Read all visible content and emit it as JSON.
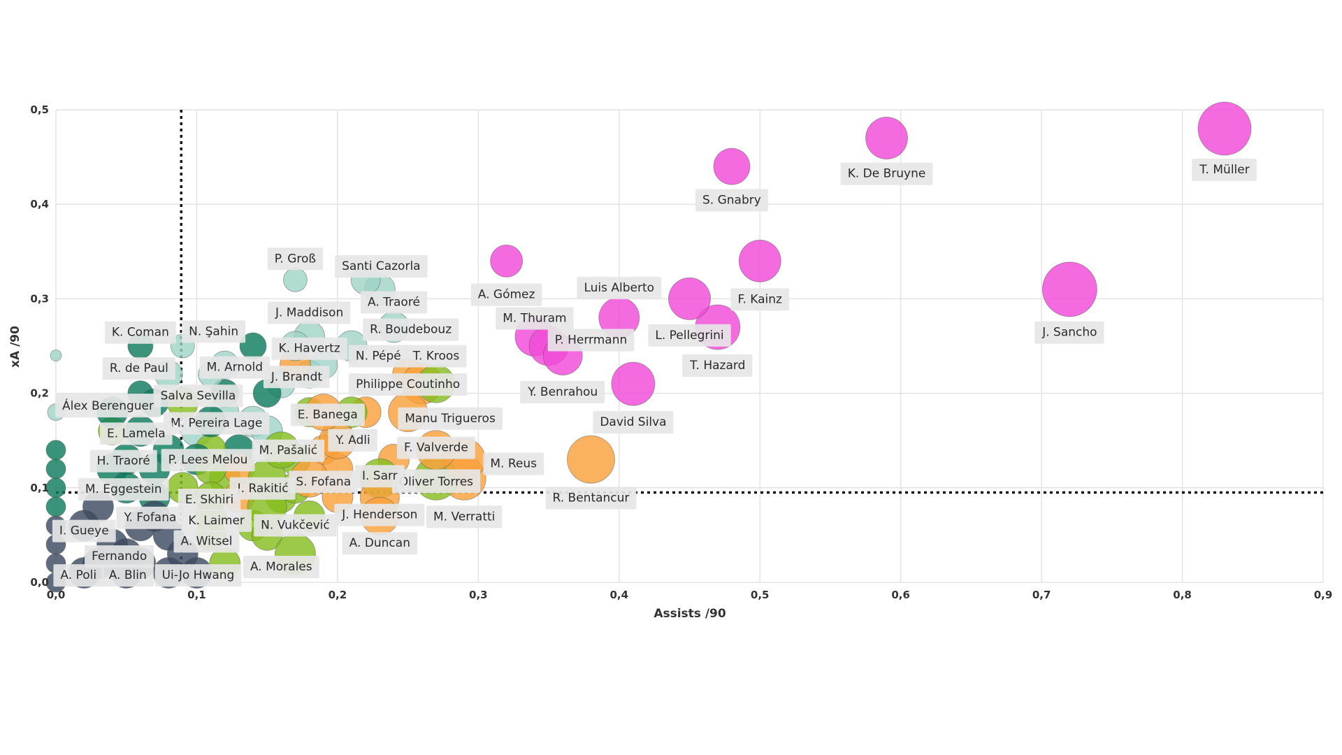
{
  "chart_data": {
    "type": "scatter",
    "title": "",
    "xlabel": "Assists /90",
    "ylabel": "xA /90",
    "xlim": [
      0,
      0.9
    ],
    "ylim": [
      0,
      0.5
    ],
    "x_ticks": [
      0,
      0.1,
      0.2,
      0.3,
      0.4,
      0.5,
      0.6,
      0.7,
      0.8,
      0.9
    ],
    "x_tick_labels": [
      "0,0",
      "0,1",
      "0,2",
      "0,3",
      "0,4",
      "0,5",
      "0,6",
      "0,7",
      "0,8",
      "0,9"
    ],
    "y_ticks": [
      0,
      0.1,
      0.2,
      0.3,
      0.4,
      0.5
    ],
    "y_tick_labels": [
      "0,0",
      "0,1",
      "0,2",
      "0,3",
      "0,4",
      "0,5"
    ],
    "grid": true,
    "reference_lines": {
      "x": 0.089,
      "y": 0.095
    },
    "colors": {
      "magenta": "#f04bd8",
      "orange": "#f9a13a",
      "lime": "#86bd1f",
      "teal": "#0f7b5e",
      "mint": "#9fd2c6",
      "slate": "#3d4a60"
    },
    "labeled_points": [
      {
        "name": "T. Müller",
        "x": 0.83,
        "y": 0.48,
        "r": 38,
        "group": "magenta",
        "lx": 0.83,
        "ly": 0.437
      },
      {
        "name": "K. De Bruyne",
        "x": 0.59,
        "y": 0.47,
        "r": 30,
        "group": "magenta",
        "lx": 0.59,
        "ly": 0.433
      },
      {
        "name": "S. Gnabry",
        "x": 0.48,
        "y": 0.44,
        "r": 26,
        "group": "magenta",
        "lx": 0.48,
        "ly": 0.405
      },
      {
        "name": "F. Kainz",
        "x": 0.5,
        "y": 0.34,
        "r": 30,
        "group": "magenta",
        "lx": 0.5,
        "ly": 0.3
      },
      {
        "name": "J. Sancho",
        "x": 0.72,
        "y": 0.31,
        "r": 39,
        "group": "magenta",
        "lx": 0.72,
        "ly": 0.265
      },
      {
        "name": "A. Gómez",
        "x": 0.32,
        "y": 0.34,
        "r": 23,
        "group": "magenta",
        "lx": 0.32,
        "ly": 0.305
      },
      {
        "name": "Luis Alberto",
        "x": 0.4,
        "y": 0.28,
        "r": 29,
        "group": "magenta",
        "lx": 0.4,
        "ly": 0.312
      },
      {
        "name": "L. Pellegrini",
        "x": 0.45,
        "y": 0.3,
        "r": 30,
        "group": "magenta",
        "lx": 0.45,
        "ly": 0.262
      },
      {
        "name": "T. Hazard",
        "x": 0.47,
        "y": 0.27,
        "r": 32,
        "group": "magenta",
        "lx": 0.47,
        "ly": 0.23
      },
      {
        "name": "M. Thuram",
        "x": 0.34,
        "y": 0.26,
        "r": 28,
        "group": "magenta",
        "lx": 0.34,
        "ly": 0.28
      },
      {
        "name": "P. Herrmann",
        "x": 0.35,
        "y": 0.25,
        "r": 28,
        "group": "magenta",
        "lx": 0.38,
        "ly": 0.257
      },
      {
        "name": "Y. Benrahou",
        "x": 0.36,
        "y": 0.24,
        "r": 28,
        "group": "magenta",
        "lx": 0.36,
        "ly": 0.202
      },
      {
        "name": "David Silva",
        "x": 0.41,
        "y": 0.21,
        "r": 31,
        "group": "magenta",
        "lx": 0.41,
        "ly": 0.17
      },
      {
        "name": "R. Bentancur",
        "x": 0.38,
        "y": 0.13,
        "r": 34,
        "group": "orange",
        "lx": 0.38,
        "ly": 0.09
      },
      {
        "name": "M. Reus",
        "x": 0.29,
        "y": 0.13,
        "r": 30,
        "group": "orange",
        "lx": 0.325,
        "ly": 0.126
      },
      {
        "name": "M. Verratti",
        "x": 0.29,
        "y": 0.11,
        "r": 31,
        "group": "orange",
        "lx": 0.29,
        "ly": 0.07
      },
      {
        "name": "Óliver Torres",
        "x": 0.27,
        "y": 0.11,
        "r": 31,
        "group": "lime",
        "lx": 0.27,
        "ly": 0.107
      },
      {
        "name": "F. Valverde",
        "x": 0.27,
        "y": 0.14,
        "r": 28,
        "group": "orange",
        "lx": 0.27,
        "ly": 0.143
      },
      {
        "name": "Philippe Coutinho",
        "x": 0.26,
        "y": 0.21,
        "r": 29,
        "group": "orange",
        "lx": 0.25,
        "ly": 0.21
      },
      {
        "name": "Manu Trigueros",
        "x": 0.25,
        "y": 0.18,
        "r": 28,
        "group": "orange",
        "lx": 0.28,
        "ly": 0.174
      },
      {
        "name": "T. Kroos",
        "x": 0.27,
        "y": 0.21,
        "r": 27,
        "group": "lime",
        "lx": 0.27,
        "ly": 0.24
      },
      {
        "name": "I. Sarr",
        "x": 0.23,
        "y": 0.11,
        "r": 28,
        "group": "lime",
        "lx": 0.23,
        "ly": 0.113
      },
      {
        "name": "J. Henderson",
        "x": 0.23,
        "y": 0.09,
        "r": 28,
        "group": "orange",
        "lx": 0.23,
        "ly": 0.072
      },
      {
        "name": "A. Duncan",
        "x": 0.23,
        "y": 0.07,
        "r": 27,
        "group": "orange",
        "lx": 0.23,
        "ly": 0.042
      },
      {
        "name": "A. Morales",
        "x": 0.17,
        "y": 0.03,
        "r": 29,
        "group": "lime",
        "lx": 0.16,
        "ly": 0.017
      },
      {
        "name": "N. Vukčević",
        "x": 0.15,
        "y": 0.08,
        "r": 28,
        "group": "lime",
        "lx": 0.17,
        "ly": 0.061
      },
      {
        "name": "S. Fofana",
        "x": 0.18,
        "y": 0.11,
        "r": 27,
        "group": "orange",
        "lx": 0.19,
        "ly": 0.107
      },
      {
        "name": "J. Rakitić",
        "x": 0.15,
        "y": 0.11,
        "r": 27,
        "group": "lime",
        "lx": 0.147,
        "ly": 0.1
      },
      {
        "name": "M. Pašalić",
        "x": 0.16,
        "y": 0.14,
        "r": 26,
        "group": "lime",
        "lx": 0.165,
        "ly": 0.14
      },
      {
        "name": "Y. Adli",
        "x": 0.2,
        "y": 0.15,
        "r": 26,
        "group": "orange",
        "lx": 0.211,
        "ly": 0.151
      },
      {
        "name": "E. Banega",
        "x": 0.19,
        "y": 0.18,
        "r": 26,
        "group": "orange",
        "lx": 0.193,
        "ly": 0.178
      },
      {
        "name": "N. Pépé",
        "x": 0.21,
        "y": 0.25,
        "r": 22,
        "group": "mint",
        "lx": 0.229,
        "ly": 0.24
      },
      {
        "name": "R. Boudebouz",
        "x": 0.24,
        "y": 0.27,
        "r": 22,
        "group": "mint",
        "lx": 0.252,
        "ly": 0.268
      },
      {
        "name": "A. Traoré",
        "x": 0.23,
        "y": 0.31,
        "r": 22,
        "group": "mint",
        "lx": 0.24,
        "ly": 0.297
      },
      {
        "name": "Santi Cazorla",
        "x": 0.22,
        "y": 0.32,
        "r": 21,
        "group": "mint",
        "lx": 0.231,
        "ly": 0.335
      },
      {
        "name": "P. Groß",
        "x": 0.17,
        "y": 0.32,
        "r": 17,
        "group": "mint",
        "lx": 0.17,
        "ly": 0.343
      },
      {
        "name": "J. Maddison",
        "x": 0.18,
        "y": 0.26,
        "r": 22,
        "group": "mint",
        "lx": 0.18,
        "ly": 0.286
      },
      {
        "name": "K. Havertz",
        "x": 0.17,
        "y": 0.25,
        "r": 21,
        "group": "mint",
        "lx": 0.18,
        "ly": 0.248
      },
      {
        "name": "J. Brandt",
        "x": 0.17,
        "y": 0.23,
        "r": 22,
        "group": "orange",
        "lx": 0.171,
        "ly": 0.218
      },
      {
        "name": "M. Arnold",
        "x": 0.12,
        "y": 0.23,
        "r": 20,
        "group": "mint",
        "lx": 0.127,
        "ly": 0.228
      },
      {
        "name": "N. Şahin",
        "x": 0.09,
        "y": 0.25,
        "r": 17,
        "group": "mint",
        "lx": 0.112,
        "ly": 0.266
      },
      {
        "name": "K. Coman",
        "x": 0.06,
        "y": 0.25,
        "r": 18,
        "group": "teal",
        "lx": 0.06,
        "ly": 0.265
      },
      {
        "name": "R. de Paul",
        "x": 0.08,
        "y": 0.22,
        "r": 20,
        "group": "mint",
        "lx": 0.059,
        "ly": 0.227
      },
      {
        "name": "Salva Sevilla",
        "x": 0.09,
        "y": 0.19,
        "r": 22,
        "group": "lime",
        "lx": 0.101,
        "ly": 0.198
      },
      {
        "name": "Álex Berenguer",
        "x": 0.04,
        "y": 0.18,
        "r": 22,
        "group": "teal",
        "lx": 0.037,
        "ly": 0.187
      },
      {
        "name": "M. Pereira Lage",
        "x": 0.11,
        "y": 0.17,
        "r": 22,
        "group": "teal",
        "lx": 0.114,
        "ly": 0.169
      },
      {
        "name": "E. Lamela",
        "x": 0.06,
        "y": 0.16,
        "r": 22,
        "group": "teal",
        "lx": 0.057,
        "ly": 0.158
      },
      {
        "name": "H. Traoré",
        "x": 0.05,
        "y": 0.13,
        "r": 22,
        "group": "teal",
        "lx": 0.048,
        "ly": 0.129
      },
      {
        "name": "P. Lees Melou",
        "x": 0.11,
        "y": 0.12,
        "r": 22,
        "group": "lime",
        "lx": 0.108,
        "ly": 0.13
      },
      {
        "name": "M. Eggestein",
        "x": 0.05,
        "y": 0.1,
        "r": 22,
        "group": "teal",
        "lx": 0.048,
        "ly": 0.099
      },
      {
        "name": "E. Skhiri",
        "x": 0.11,
        "y": 0.09,
        "r": 22,
        "group": "lime",
        "lx": 0.109,
        "ly": 0.088
      },
      {
        "name": "Y. Fofana",
        "x": 0.07,
        "y": 0.07,
        "r": 22,
        "group": "slate",
        "lx": 0.067,
        "ly": 0.069
      },
      {
        "name": "K. Laimer",
        "x": 0.11,
        "y": 0.07,
        "r": 22,
        "group": "lime",
        "lx": 0.114,
        "ly": 0.066
      },
      {
        "name": "A. Witsel",
        "x": 0.11,
        "y": 0.05,
        "r": 22,
        "group": "lime",
        "lx": 0.107,
        "ly": 0.044
      },
      {
        "name": "I. Gueye",
        "x": 0.02,
        "y": 0.06,
        "r": 22,
        "group": "slate",
        "lx": 0.02,
        "ly": 0.055
      },
      {
        "name": "Fernando",
        "x": 0.05,
        "y": 0.03,
        "r": 22,
        "group": "slate",
        "lx": 0.045,
        "ly": 0.028
      },
      {
        "name": "A. Poli",
        "x": 0.02,
        "y": 0.01,
        "r": 22,
        "group": "slate",
        "lx": 0.016,
        "ly": 0.008
      },
      {
        "name": "A. Blin",
        "x": 0.05,
        "y": 0.01,
        "r": 22,
        "group": "slate",
        "lx": 0.051,
        "ly": 0.008
      },
      {
        "name": "Ui-Jo Hwang",
        "x": 0.1,
        "y": 0.01,
        "r": 22,
        "group": "slate",
        "lx": 0.101,
        "ly": 0.008
      }
    ],
    "background_points": [
      {
        "x": 0.0,
        "y": 0.24,
        "r": 8,
        "group": "mint"
      },
      {
        "x": 0.0,
        "y": 0.18,
        "r": 12,
        "group": "mint"
      },
      {
        "x": 0.0,
        "y": 0.14,
        "r": 14,
        "group": "teal"
      },
      {
        "x": 0.0,
        "y": 0.12,
        "r": 14,
        "group": "teal"
      },
      {
        "x": 0.0,
        "y": 0.1,
        "r": 14,
        "group": "teal"
      },
      {
        "x": 0.0,
        "y": 0.08,
        "r": 14,
        "group": "teal"
      },
      {
        "x": 0.0,
        "y": 0.06,
        "r": 14,
        "group": "slate"
      },
      {
        "x": 0.0,
        "y": 0.04,
        "r": 14,
        "group": "slate"
      },
      {
        "x": 0.0,
        "y": 0.02,
        "r": 14,
        "group": "slate"
      },
      {
        "x": 0.0,
        "y": 0.0,
        "r": 14,
        "group": "slate"
      },
      {
        "x": 0.14,
        "y": 0.25,
        "r": 19,
        "group": "teal"
      },
      {
        "x": 0.06,
        "y": 0.2,
        "r": 18,
        "group": "teal"
      },
      {
        "x": 0.07,
        "y": 0.19,
        "r": 20,
        "group": "teal"
      },
      {
        "x": 0.12,
        "y": 0.2,
        "r": 20,
        "group": "teal"
      },
      {
        "x": 0.14,
        "y": 0.17,
        "r": 22,
        "group": "mint"
      },
      {
        "x": 0.15,
        "y": 0.16,
        "r": 22,
        "group": "mint"
      },
      {
        "x": 0.16,
        "y": 0.21,
        "r": 20,
        "group": "mint"
      },
      {
        "x": 0.18,
        "y": 0.22,
        "r": 20,
        "group": "mint"
      },
      {
        "x": 0.18,
        "y": 0.18,
        "r": 21,
        "group": "lime"
      },
      {
        "x": 0.2,
        "y": 0.16,
        "r": 20,
        "group": "mint"
      },
      {
        "x": 0.19,
        "y": 0.14,
        "r": 21,
        "group": "orange"
      },
      {
        "x": 0.17,
        "y": 0.13,
        "r": 22,
        "group": "lime"
      },
      {
        "x": 0.13,
        "y": 0.14,
        "r": 22,
        "group": "teal"
      },
      {
        "x": 0.12,
        "y": 0.11,
        "r": 22,
        "group": "lime"
      },
      {
        "x": 0.13,
        "y": 0.09,
        "r": 22,
        "group": "orange"
      },
      {
        "x": 0.16,
        "y": 0.09,
        "r": 22,
        "group": "lime"
      },
      {
        "x": 0.2,
        "y": 0.09,
        "r": 22,
        "group": "orange"
      },
      {
        "x": 0.2,
        "y": 0.12,
        "r": 22,
        "group": "orange"
      },
      {
        "x": 0.22,
        "y": 0.18,
        "r": 22,
        "group": "orange"
      },
      {
        "x": 0.24,
        "y": 0.13,
        "r": 22,
        "group": "orange"
      },
      {
        "x": 0.14,
        "y": 0.06,
        "r": 22,
        "group": "lime"
      },
      {
        "x": 0.15,
        "y": 0.05,
        "r": 22,
        "group": "lime"
      },
      {
        "x": 0.12,
        "y": 0.02,
        "r": 22,
        "group": "lime"
      },
      {
        "x": 0.09,
        "y": 0.03,
        "r": 22,
        "group": "slate"
      },
      {
        "x": 0.08,
        "y": 0.05,
        "r": 22,
        "group": "slate"
      },
      {
        "x": 0.06,
        "y": 0.06,
        "r": 22,
        "group": "slate"
      },
      {
        "x": 0.03,
        "y": 0.08,
        "r": 22,
        "group": "slate"
      },
      {
        "x": 0.04,
        "y": 0.04,
        "r": 22,
        "group": "slate"
      },
      {
        "x": 0.03,
        "y": 0.02,
        "r": 22,
        "group": "slate"
      },
      {
        "x": 0.06,
        "y": 0.02,
        "r": 22,
        "group": "slate"
      },
      {
        "x": 0.08,
        "y": 0.01,
        "r": 22,
        "group": "slate"
      },
      {
        "x": 0.04,
        "y": 0.12,
        "r": 22,
        "group": "teal"
      },
      {
        "x": 0.07,
        "y": 0.12,
        "r": 22,
        "group": "teal"
      },
      {
        "x": 0.08,
        "y": 0.14,
        "r": 22,
        "group": "teal"
      },
      {
        "x": 0.1,
        "y": 0.16,
        "r": 22,
        "group": "mint"
      },
      {
        "x": 0.12,
        "y": 0.18,
        "r": 20,
        "group": "mint"
      },
      {
        "x": 0.09,
        "y": 0.1,
        "r": 22,
        "group": "lime"
      },
      {
        "x": 0.07,
        "y": 0.09,
        "r": 22,
        "group": "teal"
      },
      {
        "x": 0.04,
        "y": 0.16,
        "r": 20,
        "group": "lime"
      },
      {
        "x": 0.11,
        "y": 0.22,
        "r": 18,
        "group": "mint"
      },
      {
        "x": 0.15,
        "y": 0.2,
        "r": 20,
        "group": "teal"
      },
      {
        "x": 0.19,
        "y": 0.23,
        "r": 20,
        "group": "mint"
      },
      {
        "x": 0.25,
        "y": 0.22,
        "r": 22,
        "group": "orange"
      },
      {
        "x": 0.21,
        "y": 0.18,
        "r": 22,
        "group": "lime"
      },
      {
        "x": 0.17,
        "y": 0.1,
        "r": 22,
        "group": "lime"
      },
      {
        "x": 0.18,
        "y": 0.07,
        "r": 22,
        "group": "lime"
      },
      {
        "x": 0.13,
        "y": 0.12,
        "r": 22,
        "group": "orange"
      },
      {
        "x": 0.11,
        "y": 0.14,
        "r": 22,
        "group": "lime"
      },
      {
        "x": 0.1,
        "y": 0.13,
        "r": 22,
        "group": "teal"
      }
    ]
  }
}
